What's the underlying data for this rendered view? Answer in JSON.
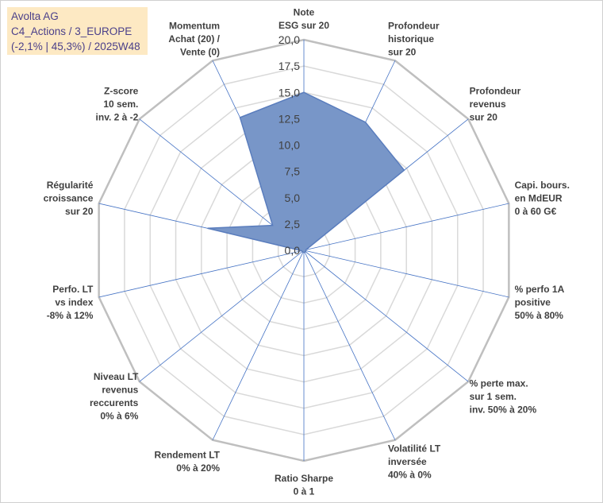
{
  "header": {
    "line1": "Avolta AG",
    "line2": "C4_Actions / 3_EUROPE",
    "line3": "(-2,1% | 45,3%) / 2025W48"
  },
  "chart_data": {
    "type": "radar",
    "rmin": 0,
    "rmax": 20,
    "ticks": [
      "0,0",
      "2,5",
      "5,0",
      "7,5",
      "10,0",
      "12,5",
      "15,0",
      "17,5",
      "20,0"
    ],
    "tick_values": [
      0,
      2.5,
      5,
      7.5,
      10,
      12.5,
      15,
      17.5,
      20
    ],
    "axes": [
      {
        "label": [
          "Note",
          "ESG sur 20"
        ],
        "value": 15.0
      },
      {
        "label": [
          "Profondeur",
          "historique",
          "sur 20"
        ],
        "value": 13.5
      },
      {
        "label": [
          "Profondeur",
          "revenus",
          "sur 20"
        ],
        "value": 12.2
      },
      {
        "label": [
          "Capi. bours.",
          "en MdEUR",
          "0 à 60 G€"
        ],
        "value": 0.2
      },
      {
        "label": [
          "% perfo 1A",
          "positive",
          "50% à 80%"
        ],
        "value": 0.2
      },
      {
        "label": [
          "% perte max.",
          "sur 1 sem.",
          "inv. 50% à 20%"
        ],
        "value": 0.2
      },
      {
        "label": [
          "Volatilité LT",
          "inversée",
          "40% à 0%"
        ],
        "value": 0.2
      },
      {
        "label": [
          "Ratio Sharpe",
          "0 à 1"
        ],
        "value": 0.2
      },
      {
        "label": [
          "Rendement LT",
          "0% à 20%"
        ],
        "value": 0.2
      },
      {
        "label": [
          "Niveau LT",
          "revenus",
          "reccurents",
          "0% à 6%"
        ],
        "value": 0.2
      },
      {
        "label": [
          "Perfo. LT",
          "vs index",
          "-8% à 12%"
        ],
        "value": 0.2
      },
      {
        "label": [
          "Régularité",
          "croissance",
          "sur 20"
        ],
        "value": 9.4
      },
      {
        "label": [
          "Z-score",
          "10 sem.",
          "inv. 2 à -2"
        ],
        "value": 3.8
      },
      {
        "label": [
          "Momentum",
          "Achat (20) /",
          "Vente (0)"
        ],
        "value": 14.0
      }
    ],
    "colors": {
      "fill": "#7896c8",
      "stroke": "#5a7dbd",
      "grid": "#d9d9d9",
      "outer": "#bfbfbf",
      "spoke": "#4472c4"
    }
  }
}
